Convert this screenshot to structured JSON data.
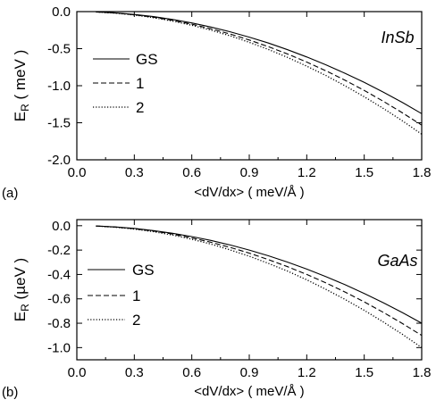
{
  "chart_data": [
    {
      "type": "line",
      "panel_label": "(a)",
      "material": "InSb",
      "ylabel_main": "E",
      "ylabel_sub": "R",
      "ylabel_unit": " ( meV )",
      "xlabel": "<dV/dx> ( meV/Å )",
      "xlim": [
        0.0,
        1.8
      ],
      "ylim": [
        -2.0,
        0.0
      ],
      "xticks": [
        "0.0",
        "0.3",
        "0.6",
        "0.9",
        "1.2",
        "1.5",
        "1.8"
      ],
      "yticks": [
        "0.0",
        "-0.5",
        "-1.0",
        "-1.5",
        "-2.0"
      ],
      "legend": [
        "GS",
        "1",
        "2"
      ],
      "x": [
        0.1,
        0.2,
        0.3,
        0.4,
        0.5,
        0.6,
        0.7,
        0.8,
        0.9,
        1.0,
        1.1,
        1.2,
        1.3,
        1.4,
        1.5,
        1.6,
        1.7,
        1.8
      ],
      "series": [
        {
          "name": "GS",
          "style": "solid",
          "values": [
            -0.004,
            -0.017,
            -0.038,
            -0.068,
            -0.106,
            -0.153,
            -0.208,
            -0.272,
            -0.344,
            -0.424,
            -0.514,
            -0.612,
            -0.718,
            -0.833,
            -0.956,
            -1.088,
            -1.228,
            -1.377
          ]
        },
        {
          "name": "1",
          "style": "dashed",
          "values": [
            -0.005,
            -0.019,
            -0.043,
            -0.076,
            -0.118,
            -0.17,
            -0.232,
            -0.303,
            -0.383,
            -0.473,
            -0.572,
            -0.681,
            -0.799,
            -0.927,
            -1.064,
            -1.211,
            -1.367,
            -1.532
          ]
        },
        {
          "name": "2",
          "style": "dotted",
          "values": [
            -0.005,
            -0.021,
            -0.046,
            -0.082,
            -0.128,
            -0.184,
            -0.25,
            -0.327,
            -0.414,
            -0.511,
            -0.618,
            -0.736,
            -0.863,
            -1.001,
            -1.149,
            -1.307,
            -1.476,
            -1.654
          ]
        }
      ]
    },
    {
      "type": "line",
      "panel_label": "(b)",
      "material": "GaAs",
      "ylabel_main": "E",
      "ylabel_sub": "R",
      "ylabel_unit": " (µeV )",
      "xlabel": "<dV/dx> ( meV/Å )",
      "xlim": [
        0.0,
        1.8
      ],
      "ylim": [
        -1.1,
        0.05
      ],
      "xticks": [
        "0.0",
        "0.3",
        "0.6",
        "0.9",
        "1.2",
        "1.5",
        "1.8"
      ],
      "yticks": [
        "0.0",
        "-0.2",
        "-0.4",
        "-0.6",
        "-0.8",
        "-1.0"
      ],
      "legend": [
        "GS",
        "1",
        "2"
      ],
      "x": [
        0.1,
        0.2,
        0.3,
        0.4,
        0.5,
        0.6,
        0.7,
        0.8,
        0.9,
        1.0,
        1.1,
        1.2,
        1.3,
        1.4,
        1.5,
        1.6,
        1.7,
        1.8
      ],
      "series": [
        {
          "name": "GS",
          "style": "solid",
          "values": [
            -0.002,
            -0.01,
            -0.022,
            -0.04,
            -0.062,
            -0.089,
            -0.121,
            -0.158,
            -0.2,
            -0.247,
            -0.299,
            -0.356,
            -0.418,
            -0.484,
            -0.556,
            -0.632,
            -0.714,
            -0.8
          ]
        },
        {
          "name": "1",
          "style": "dashed",
          "values": [
            -0.003,
            -0.011,
            -0.025,
            -0.044,
            -0.069,
            -0.1,
            -0.136,
            -0.178,
            -0.225,
            -0.278,
            -0.336,
            -0.4,
            -0.469,
            -0.544,
            -0.625,
            -0.711,
            -0.803,
            -0.9
          ]
        },
        {
          "name": "2",
          "style": "dotted",
          "values": [
            -0.003,
            -0.012,
            -0.028,
            -0.049,
            -0.077,
            -0.111,
            -0.151,
            -0.198,
            -0.25,
            -0.309,
            -0.373,
            -0.444,
            -0.522,
            -0.605,
            -0.694,
            -0.79,
            -0.892,
            -1.0
          ]
        }
      ]
    }
  ]
}
